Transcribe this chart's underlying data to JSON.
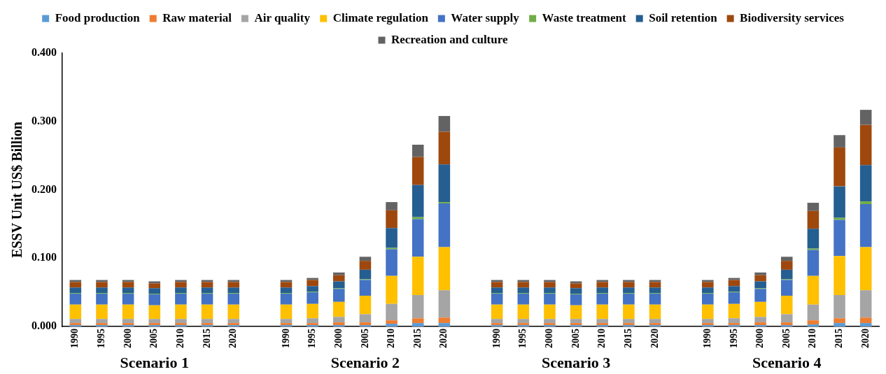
{
  "chart_data": {
    "type": "bar",
    "stacked": true,
    "ylabel": "ESSV Unit US$ Billion",
    "categories": [
      "1990",
      "1995",
      "2000",
      "2005",
      "2010",
      "2015",
      "2020",
      null,
      "1990",
      "1995",
      "2000",
      "2005",
      "2010",
      "2015",
      "2020",
      null,
      "1990",
      "1995",
      "2000",
      "2005",
      "2010",
      "2015",
      "2020",
      null,
      "1990",
      "1995",
      "2000",
      "2005",
      "2010",
      "2015",
      "2020"
    ],
    "annotations": [
      "Scenario 1",
      "Scenario 2",
      "Scenario 3",
      "Scenario 4"
    ],
    "ylim": [
      0,
      0.4
    ],
    "yticks": [
      {
        "value": 0,
        "label": "0.000"
      },
      {
        "value": 0.1,
        "label": "0.100"
      },
      {
        "value": 0.2,
        "label": "0.200"
      },
      {
        "value": 0.3,
        "label": "0.300"
      },
      {
        "value": 0.4,
        "label": "0.400"
      }
    ],
    "grid": false,
    "legend": "top",
    "series": [
      {
        "name": "Food production",
        "color": "#5b9bd5",
        "values": [
          0.002,
          0.002,
          0.002,
          0.002,
          0.002,
          0.002,
          0.002,
          null,
          0.002,
          0.002,
          0.002,
          0.002,
          0.004,
          0.005,
          0.005,
          null,
          0.002,
          0.002,
          0.002,
          0.002,
          0.002,
          0.002,
          0.002,
          null,
          0.002,
          0.002,
          0.002,
          0.002,
          0.003,
          0.005,
          0.005
        ]
      },
      {
        "name": "Raw material",
        "color": "#ed7d31",
        "values": [
          0.003,
          0.003,
          0.003,
          0.003,
          0.003,
          0.003,
          0.003,
          null,
          0.003,
          0.003,
          0.004,
          0.004,
          0.005,
          0.007,
          0.008,
          null,
          0.003,
          0.003,
          0.003,
          0.003,
          0.003,
          0.003,
          0.003,
          null,
          0.003,
          0.003,
          0.004,
          0.004,
          0.006,
          0.007,
          0.008
        ]
      },
      {
        "name": "Air quality",
        "color": "#a5a5a5",
        "values": [
          0.006,
          0.006,
          0.006,
          0.006,
          0.006,
          0.006,
          0.006,
          null,
          0.006,
          0.007,
          0.008,
          0.012,
          0.024,
          0.034,
          0.04,
          null,
          0.006,
          0.006,
          0.006,
          0.006,
          0.006,
          0.006,
          0.006,
          null,
          0.006,
          0.007,
          0.008,
          0.012,
          0.023,
          0.034,
          0.04
        ]
      },
      {
        "name": "Climate regulation",
        "color": "#ffc000",
        "values": [
          0.021,
          0.021,
          0.021,
          0.02,
          0.021,
          0.021,
          0.021,
          null,
          0.021,
          0.021,
          0.022,
          0.027,
          0.041,
          0.056,
          0.063,
          null,
          0.021,
          0.021,
          0.021,
          0.02,
          0.021,
          0.021,
          0.021,
          null,
          0.021,
          0.021,
          0.022,
          0.027,
          0.042,
          0.057,
          0.063
        ]
      },
      {
        "name": "Water supply",
        "color": "#4472c4",
        "values": [
          0.016,
          0.016,
          0.016,
          0.016,
          0.016,
          0.016,
          0.016,
          null,
          0.016,
          0.017,
          0.019,
          0.023,
          0.039,
          0.055,
          0.064,
          null,
          0.016,
          0.016,
          0.016,
          0.016,
          0.016,
          0.016,
          0.016,
          null,
          0.016,
          0.017,
          0.019,
          0.023,
          0.038,
          0.053,
          0.063
        ]
      },
      {
        "name": "Waste treatment",
        "color": "#70ad47",
        "values": [
          0.001,
          0.001,
          0.001,
          0.001,
          0.001,
          0.001,
          0.001,
          null,
          0.001,
          0.001,
          0.001,
          0.001,
          0.002,
          0.003,
          0.002,
          null,
          0.001,
          0.001,
          0.001,
          0.001,
          0.001,
          0.001,
          0.001,
          null,
          0.001,
          0.001,
          0.001,
          0.001,
          0.002,
          0.003,
          0.004
        ]
      },
      {
        "name": "Soil retention",
        "color": "#255e91",
        "values": [
          0.008,
          0.008,
          0.008,
          0.008,
          0.008,
          0.008,
          0.008,
          null,
          0.008,
          0.008,
          0.01,
          0.014,
          0.029,
          0.047,
          0.055,
          null,
          0.008,
          0.008,
          0.008,
          0.008,
          0.008,
          0.008,
          0.008,
          null,
          0.008,
          0.008,
          0.01,
          0.014,
          0.029,
          0.046,
          0.053
        ]
      },
      {
        "name": "Biodiversity services",
        "color": "#9e480e",
        "values": [
          0.008,
          0.008,
          0.008,
          0.007,
          0.008,
          0.008,
          0.008,
          null,
          0.008,
          0.009,
          0.009,
          0.013,
          0.026,
          0.041,
          0.048,
          null,
          0.008,
          0.008,
          0.008,
          0.007,
          0.008,
          0.008,
          0.008,
          null,
          0.008,
          0.009,
          0.009,
          0.013,
          0.026,
          0.057,
          0.059
        ]
      },
      {
        "name": "Recreation and culture",
        "color": "#636363",
        "values": [
          0.003,
          0.003,
          0.003,
          0.003,
          0.003,
          0.003,
          0.003,
          null,
          0.003,
          0.003,
          0.004,
          0.006,
          0.012,
          0.018,
          0.023,
          null,
          0.003,
          0.003,
          0.003,
          0.003,
          0.003,
          0.003,
          0.003,
          null,
          0.003,
          0.003,
          0.004,
          0.006,
          0.012,
          0.018,
          0.022
        ]
      }
    ]
  }
}
